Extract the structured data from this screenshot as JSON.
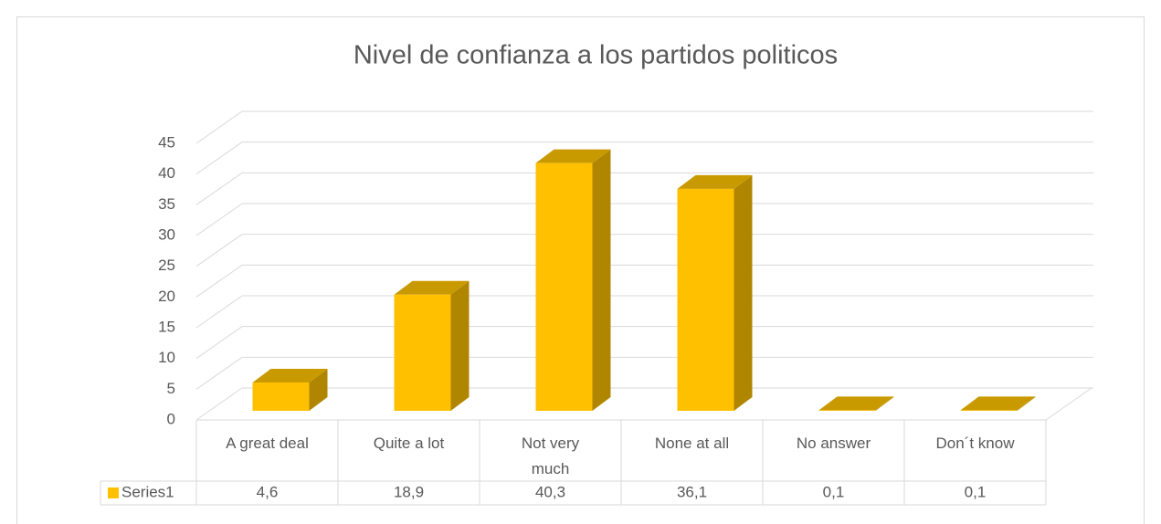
{
  "chart_data": {
    "type": "bar3d",
    "title": "Nivel de confianza a los partidos politicos",
    "categories": [
      "A great deal",
      "Quite a lot",
      "Not very much",
      "None at all",
      "No answer",
      "Don´t know"
    ],
    "series": [
      {
        "name": "Series1",
        "color": "#ffc000",
        "values": [
          4.6,
          18.9,
          40.3,
          36.1,
          0.1,
          0.1
        ],
        "value_labels": [
          "4,6",
          "18,9",
          "40,3",
          "36,1",
          "0,1",
          "0,1"
        ]
      }
    ],
    "ylim": [
      0,
      45
    ],
    "yticks": [
      0,
      5,
      10,
      15,
      20,
      25,
      30,
      35,
      40,
      45
    ],
    "grid": true,
    "data_table": true
  }
}
